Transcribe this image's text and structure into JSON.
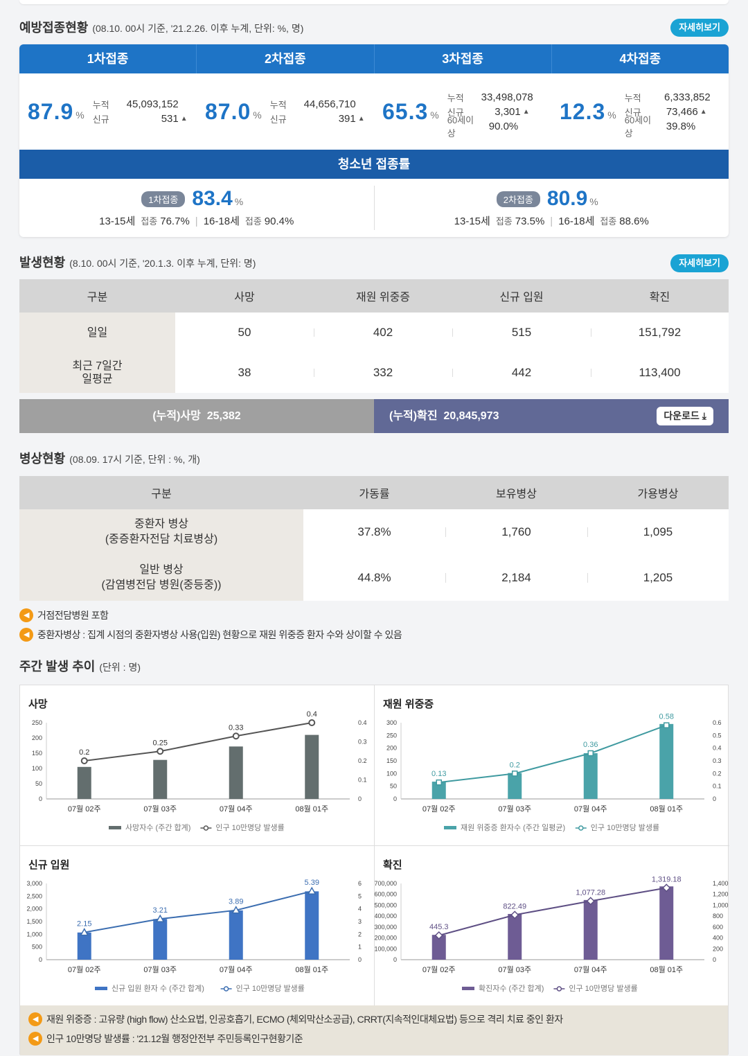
{
  "vaccination": {
    "title": "예방접종현황",
    "subtitle": "(08.10. 00시 기준, '21.2.26. 이후 누계, 단위: %, 명)",
    "detail_button": "자세히보기",
    "doses": [
      {
        "label": "1차접종",
        "pct": "87.9",
        "pct_unit": "%",
        "cum_label": "누적",
        "cum": "45,093,152",
        "new_label": "신규",
        "new": "531",
        "sixty_label": "",
        "sixty": ""
      },
      {
        "label": "2차접종",
        "pct": "87.0",
        "pct_unit": "%",
        "cum_label": "누적",
        "cum": "44,656,710",
        "new_label": "신규",
        "new": "391",
        "sixty_label": "",
        "sixty": ""
      },
      {
        "label": "3차접종",
        "pct": "65.3",
        "pct_unit": "%",
        "cum_label": "누적",
        "cum": "33,498,078",
        "new_label": "신규",
        "new": "3,301",
        "sixty_label": "60세이상",
        "sixty": "90.0%"
      },
      {
        "label": "4차접종",
        "pct": "12.3",
        "pct_unit": "%",
        "cum_label": "누적",
        "cum": "6,333,852",
        "new_label": "신규",
        "new": "73,466",
        "sixty_label": "60세이상",
        "sixty": "39.8%"
      }
    ],
    "youth": {
      "title": "청소년 접종률",
      "items": [
        {
          "pill": "1차접종",
          "pct": "83.4",
          "unit": "%",
          "g1": "13-15세",
          "g1_k": "접종",
          "g1_v": "76.7%",
          "g2": "16-18세",
          "g2_k": "접종",
          "g2_v": "90.4%"
        },
        {
          "pill": "2차접종",
          "pct": "80.9",
          "unit": "%",
          "g1": "13-15세",
          "g1_k": "접종",
          "g1_v": "73.5%",
          "g2": "16-18세",
          "g2_k": "접종",
          "g2_v": "88.6%"
        }
      ]
    }
  },
  "occurrence": {
    "title": "발생현황",
    "subtitle": "(8.10. 00시 기준, '20.1.3. 이후 누계, 단위: 명)",
    "detail_button": "자세히보기",
    "headers": [
      "구분",
      "사망",
      "재원 위중증",
      "신규 입원",
      "확진"
    ],
    "rows": [
      {
        "label": "일일",
        "values": [
          "50",
          "402",
          "515",
          "151,792"
        ]
      },
      {
        "label": "최근 7일간\n일평균",
        "values": [
          "38",
          "332",
          "442",
          "113,400"
        ]
      }
    ],
    "cum_death": "(누적)사망  25,382",
    "cum_confirmed": "(누적)확진  20,845,973",
    "download": "다운로드"
  },
  "beds": {
    "title": "병상현황",
    "subtitle": "(08.09. 17시 기준, 단위 : %, 개)",
    "headers": [
      "구분",
      "가동률",
      "보유병상",
      "가용병상"
    ],
    "rows": [
      {
        "label": "중환자 병상\n(중증환자전담 치료병상)",
        "values": [
          "37.8%",
          "1,760",
          "1,095"
        ]
      },
      {
        "label": "일반 병상\n(감염병전담 병원(중등중))",
        "values": [
          "44.8%",
          "2,184",
          "1,205"
        ]
      }
    ],
    "notes": [
      "거점전담병원 포함",
      "중환자병상 : 집계 시점의 중환자병상 사용(입원) 현황으로 재원 위중증 환자 수와 상이할 수 있음"
    ]
  },
  "weekly": {
    "title": "주간 발생 추이",
    "subtitle": "(단위 : 명)",
    "footnotes": [
      "재원 위중증 : 고유량 (high flow) 산소요법, 인공호흡기, ECMO (체외막산소공급), CRRT(지속적인대체요법) 등으로 격리 치료 중인 환자",
      "인구 10만명당 발생률 : '21.12월 행정안전부 주민등록인구현황기준"
    ]
  },
  "chart_data": [
    {
      "type": "bar",
      "title": "사망",
      "categories": [
        "07월 02주",
        "07월 03주",
        "07월 04주",
        "08월 01주"
      ],
      "series": [
        {
          "name": "사망자수 (주간 합계)",
          "type": "bar",
          "values": [
            105,
            128,
            172,
            210
          ]
        },
        {
          "name": "인구 10만명당 발생률",
          "type": "line",
          "values": [
            0.2,
            0.25,
            0.33,
            0.4
          ],
          "labels": [
            "0.2",
            "0.25",
            "0.33",
            "0.4"
          ]
        }
      ],
      "ylim": [
        0,
        250
      ],
      "yticks": [
        "250",
        "200",
        "150",
        "100",
        "50",
        "0"
      ],
      "y2lim": [
        0,
        0.4
      ],
      "y2ticks": [
        "0.4",
        "0.3",
        "0.2",
        "0.1",
        "0"
      ],
      "bar_color": "#636e6e",
      "line_color": "#555555",
      "marker": "circle"
    },
    {
      "type": "bar",
      "title": "재원 위중증",
      "categories": [
        "07월 02주",
        "07월 03주",
        "07월 04주",
        "08월 01주"
      ],
      "series": [
        {
          "name": "재원 위중증 환자수 (주간 일평균)",
          "type": "bar",
          "values": [
            68,
            102,
            180,
            295
          ]
        },
        {
          "name": "인구 10만명당 발생률",
          "type": "line",
          "values": [
            0.13,
            0.2,
            0.36,
            0.58
          ],
          "labels": [
            "0.13",
            "0.2",
            "0.36",
            "0.58"
          ]
        }
      ],
      "ylim": [
        0,
        300
      ],
      "yticks": [
        "300",
        "250",
        "200",
        "150",
        "100",
        "50",
        "0"
      ],
      "y2lim": [
        0,
        0.6
      ],
      "y2ticks": [
        "0.6",
        "0.5",
        "0.4",
        "0.3",
        "0.2",
        "0.1",
        "0"
      ],
      "bar_color": "#4aa3a9",
      "line_color": "#3f9aa0",
      "marker": "square"
    },
    {
      "type": "bar",
      "title": "신규 입원",
      "categories": [
        "07월 02주",
        "07월 03주",
        "07월 04주",
        "08월 01주"
      ],
      "series": [
        {
          "name": "신규 입원 환자 수 (주간 합계)",
          "type": "bar",
          "values": [
            1070,
            1600,
            1940,
            2690
          ]
        },
        {
          "name": "인구 10만명당 발생률",
          "type": "line",
          "values": [
            2.15,
            3.21,
            3.89,
            5.39
          ],
          "labels": [
            "2.15",
            "3.21",
            "3.89",
            "5.39"
          ]
        }
      ],
      "ylim": [
        0,
        3000
      ],
      "yticks": [
        "3,000",
        "2,500",
        "2,000",
        "1,500",
        "1,000",
        "500",
        "0"
      ],
      "y2lim": [
        0,
        6
      ],
      "y2ticks": [
        "6",
        "5",
        "4",
        "3",
        "2",
        "1",
        "0"
      ],
      "bar_color": "#3f74c4",
      "line_color": "#3b6db0",
      "marker": "triangle"
    },
    {
      "type": "bar",
      "title": "확진",
      "categories": [
        "07월 02주",
        "07월 03주",
        "07월 04주",
        "08월 01주"
      ],
      "series": [
        {
          "name": "확진자수 (주간 합계)",
          "type": "bar",
          "values": [
            228000,
            420000,
            548000,
            673000
          ]
        },
        {
          "name": "인구 10만명당 발생률",
          "type": "line",
          "values": [
            445.3,
            822.49,
            1077.28,
            1319.18
          ],
          "labels": [
            "445.3",
            "822.49",
            "1,077.28",
            "1,319.18"
          ]
        }
      ],
      "ylim": [
        0,
        700000
      ],
      "yticks": [
        "700,000",
        "600,000",
        "500,000",
        "400,000",
        "300,000",
        "200,000",
        "100,000",
        "0"
      ],
      "y2lim": [
        0,
        1400
      ],
      "y2ticks": [
        "1,400",
        "1,200",
        "1,000",
        "800",
        "600",
        "400",
        "200",
        "0"
      ],
      "bar_color": "#6e5c94",
      "line_color": "#5e4f84",
      "marker": "diamond"
    }
  ]
}
